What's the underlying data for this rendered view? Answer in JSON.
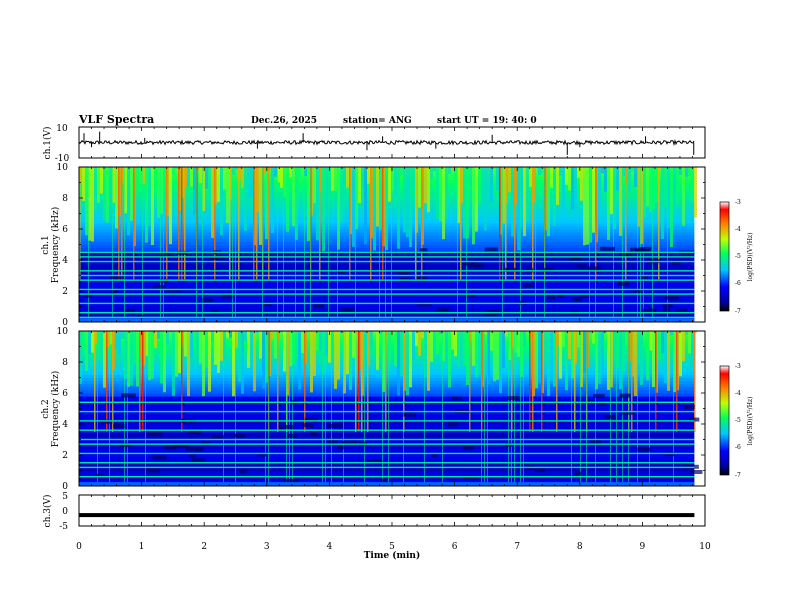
{
  "header": {
    "title": "VLF Spectra",
    "date": "Dec.26, 2025",
    "station": "station= ANG",
    "start": "start  UT =   19: 40: 0"
  },
  "chart_data": [
    {
      "type": "line",
      "id": "ch1-waveform",
      "ylabel": "ch.1(V)",
      "ylim": [
        -10,
        10
      ],
      "yticks": [
        "10",
        "-10"
      ],
      "xlim": [
        0,
        10
      ],
      "baseline": 0,
      "data_end_min": 9.83,
      "spikes": [
        {
          "t": 0.08,
          "v": 6
        },
        {
          "t": 0.2,
          "v": -3
        },
        {
          "t": 0.33,
          "v": 7
        },
        {
          "t": 1.05,
          "v": 3
        },
        {
          "t": 2.85,
          "v": -4
        },
        {
          "t": 3.58,
          "v": 6
        },
        {
          "t": 4.6,
          "v": -5
        },
        {
          "t": 4.85,
          "v": 4
        },
        {
          "t": 5.7,
          "v": -4
        },
        {
          "t": 6.6,
          "v": 5
        },
        {
          "t": 7.8,
          "v": -8
        },
        {
          "t": 8.0,
          "v": -3
        },
        {
          "t": 9.05,
          "v": 4
        },
        {
          "t": 9.82,
          "v": -8
        }
      ]
    },
    {
      "type": "heatmap",
      "id": "ch1-spectrogram",
      "ylabel_channel": "ch.1",
      "ylabel": "Frequency (kHz)",
      "ylim": [
        0,
        10
      ],
      "yticks": [
        "0",
        "2",
        "4",
        "6",
        "8",
        "10"
      ],
      "xlim": [
        0,
        10
      ],
      "data_end_min": 9.83,
      "boundary_khz": 4.6,
      "hum_lines_khz": [
        0.3,
        0.6,
        1.2,
        1.8,
        2.1,
        2.7,
        3.0,
        3.3,
        3.9,
        4.2,
        4.5
      ],
      "colorbar": {
        "label": "log(PSD)(V²/Hz)",
        "ticks": [
          "-3",
          "-4",
          "-5",
          "-6",
          "-7"
        ],
        "range": [
          -7,
          -3
        ]
      }
    },
    {
      "type": "heatmap",
      "id": "ch2-spectrogram",
      "ylabel_channel": "ch.2",
      "ylabel": "Frequency (kHz)",
      "ylim": [
        0,
        10
      ],
      "yticks": [
        "0",
        "2",
        "4",
        "6",
        "8",
        "10"
      ],
      "xlim": [
        0,
        10
      ],
      "data_end_min": 9.83,
      "boundary_khz": 5.8,
      "hum_lines_khz": [
        0.6,
        1.2,
        1.5,
        2.1,
        2.7,
        3.0,
        3.6,
        4.2,
        4.8,
        5.4
      ],
      "colorbar": {
        "label": "log(PSD)(V²/Hz)",
        "ticks": [
          "-3",
          "-4",
          "-5",
          "-6",
          "-7"
        ],
        "range": [
          -7,
          -3
        ]
      }
    },
    {
      "type": "line",
      "id": "ch3-waveform",
      "ylabel": "ch.3(V)",
      "ylim": [
        -5,
        5
      ],
      "yticks": [
        "5",
        "0",
        "-5"
      ],
      "xlim": [
        0,
        10
      ],
      "level": -1.5,
      "data_end_min": 9.83
    }
  ],
  "x_axis": {
    "label": "Time  (min)",
    "ticks": [
      "0",
      "1",
      "2",
      "3",
      "4",
      "5",
      "6",
      "7",
      "8",
      "9",
      "10"
    ],
    "range": [
      0,
      10
    ]
  }
}
